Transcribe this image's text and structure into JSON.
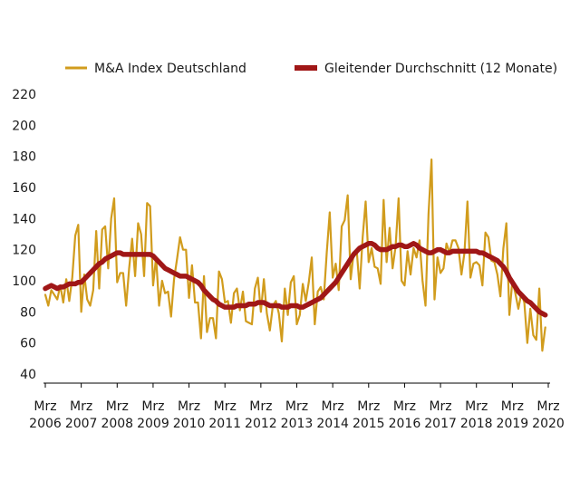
{
  "chart_data": {
    "type": "line",
    "title": "",
    "xlabel": "",
    "ylabel": "",
    "ylim": [
      40,
      220
    ],
    "y_ticks": [
      "40",
      "60",
      "80",
      "100",
      "120",
      "140",
      "160",
      "180",
      "200",
      "220"
    ],
    "grid": false,
    "legend_position": "top",
    "x_tick_labels": [
      {
        "month": "Mrz",
        "year": "2006"
      },
      {
        "month": "Mrz",
        "year": "2007"
      },
      {
        "month": "Mrz",
        "year": "2008"
      },
      {
        "month": "Mrz",
        "year": "2009"
      },
      {
        "month": "Mrz",
        "year": "2010"
      },
      {
        "month": "Mrz",
        "year": "2011"
      },
      {
        "month": "Mrz",
        "year": "2012"
      },
      {
        "month": "Mrz",
        "year": "2013"
      },
      {
        "month": "Mrz",
        "year": "2014"
      },
      {
        "month": "Mrz",
        "year": "2015"
      },
      {
        "month": "Mrz",
        "year": "2016"
      },
      {
        "month": "Mrz",
        "year": "2017"
      },
      {
        "month": "Mrz",
        "year": "2018"
      },
      {
        "month": "Mrz",
        "year": "2019"
      },
      {
        "month": "Mrz",
        "year": "2020"
      }
    ],
    "x_start": "2006-03",
    "series": [
      {
        "name": "M&A Index Deutschland",
        "color": "#d19c1d",
        "values": [
          91,
          84,
          94,
          91,
          88,
          97,
          86,
          101,
          87,
          102,
          129,
          136,
          80,
          104,
          88,
          84,
          94,
          132,
          95,
          133,
          135,
          108,
          140,
          153,
          99,
          105,
          105,
          84,
          108,
          127,
          103,
          137,
          130,
          103,
          150,
          148,
          97,
          115,
          84,
          100,
          92,
          93,
          77,
          101,
          114,
          128,
          120,
          120,
          89,
          110,
          86,
          86,
          63,
          103,
          67,
          76,
          76,
          63,
          106,
          101,
          86,
          87,
          73,
          92,
          95,
          81,
          93,
          74,
          73,
          72,
          95,
          102,
          80,
          101,
          79,
          68,
          84,
          87,
          79,
          61,
          95,
          78,
          99,
          103,
          72,
          78,
          98,
          87,
          99,
          115,
          72,
          93,
          96,
          88,
          118,
          144,
          102,
          111,
          94,
          135,
          139,
          155,
          101,
          118,
          120,
          95,
          128,
          151,
          112,
          121,
          109,
          108,
          98,
          152,
          112,
          134,
          108,
          122,
          153,
          100,
          97,
          119,
          104,
          121,
          115,
          126,
          100,
          84,
          143,
          178,
          88,
          115,
          105,
          108,
          124,
          118,
          126,
          126,
          121,
          104,
          118,
          151,
          102,
          111,
          112,
          110,
          97,
          131,
          128,
          113,
          112,
          104,
          90,
          121,
          137,
          78,
          100,
          92,
          82,
          92,
          86,
          60,
          82,
          65,
          62,
          95,
          55,
          70
        ]
      },
      {
        "name": "Gleitender Durchschnitt (12 Monate)",
        "color": "#a01717",
        "values": [
          95,
          96,
          97,
          96,
          95,
          96,
          96,
          97,
          98,
          98,
          98,
          99,
          99,
          101,
          103,
          105,
          107,
          109,
          111,
          112,
          114,
          115,
          116,
          117,
          118,
          118,
          117,
          117,
          117,
          117,
          117,
          117,
          117,
          117,
          117,
          117,
          116,
          114,
          112,
          110,
          108,
          107,
          106,
          105,
          104,
          103,
          103,
          103,
          102,
          101,
          100,
          99,
          97,
          94,
          92,
          90,
          88,
          87,
          85,
          84,
          83,
          83,
          83,
          83,
          84,
          84,
          84,
          84,
          85,
          85,
          85,
          86,
          86,
          86,
          85,
          84,
          84,
          84,
          84,
          83,
          83,
          83,
          84,
          84,
          84,
          83,
          83,
          84,
          85,
          86,
          87,
          88,
          89,
          91,
          93,
          95,
          97,
          99,
          102,
          105,
          108,
          111,
          114,
          117,
          119,
          121,
          122,
          123,
          124,
          124,
          123,
          121,
          120,
          120,
          120,
          121,
          122,
          122,
          123,
          123,
          122,
          122,
          123,
          124,
          123,
          121,
          120,
          119,
          118,
          118,
          119,
          120,
          120,
          119,
          118,
          118,
          119,
          119,
          119,
          119,
          119,
          119,
          119,
          119,
          119,
          118,
          118,
          117,
          116,
          115,
          114,
          113,
          111,
          109,
          106,
          102,
          99,
          96,
          93,
          91,
          89,
          87,
          86,
          84,
          82,
          80,
          79,
          78
        ]
      }
    ]
  }
}
